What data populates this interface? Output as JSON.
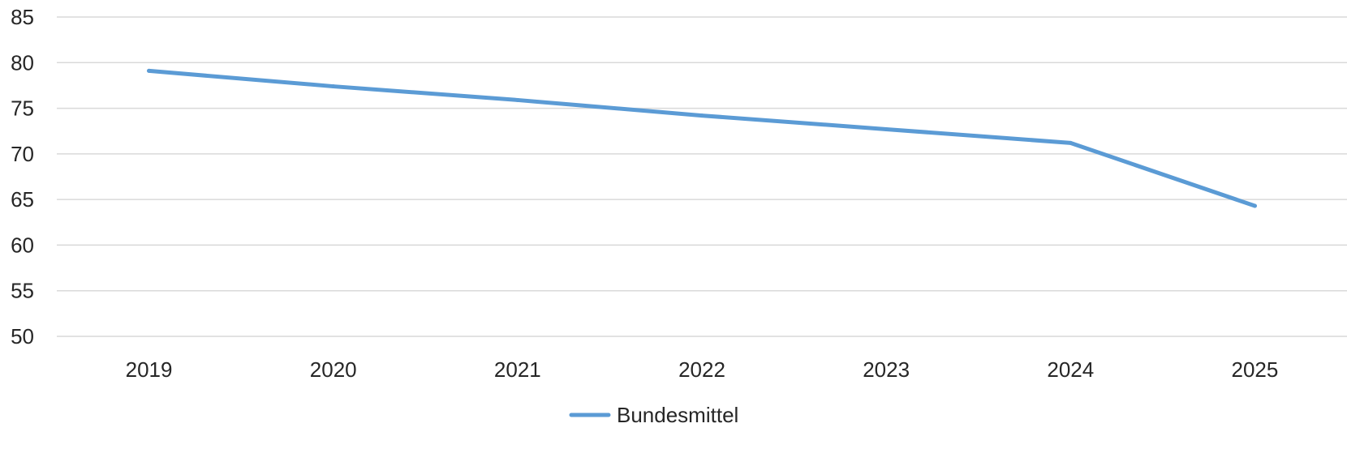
{
  "chart_data": {
    "type": "line",
    "categories": [
      "2019",
      "2020",
      "2021",
      "2022",
      "2023",
      "2024",
      "2025"
    ],
    "series": [
      {
        "name": "Bundesmittel",
        "values": [
          79.1,
          77.4,
          75.9,
          74.2,
          72.7,
          71.2,
          64.3
        ]
      }
    ],
    "ylim": [
      50,
      85
    ],
    "yticks": [
      50,
      55,
      60,
      65,
      70,
      75,
      80,
      85
    ],
    "grid": true,
    "legend_position": "bottom-center",
    "colors": {
      "series": "#5b9bd5",
      "grid": "#d9d9d9",
      "text": "#262626"
    }
  }
}
